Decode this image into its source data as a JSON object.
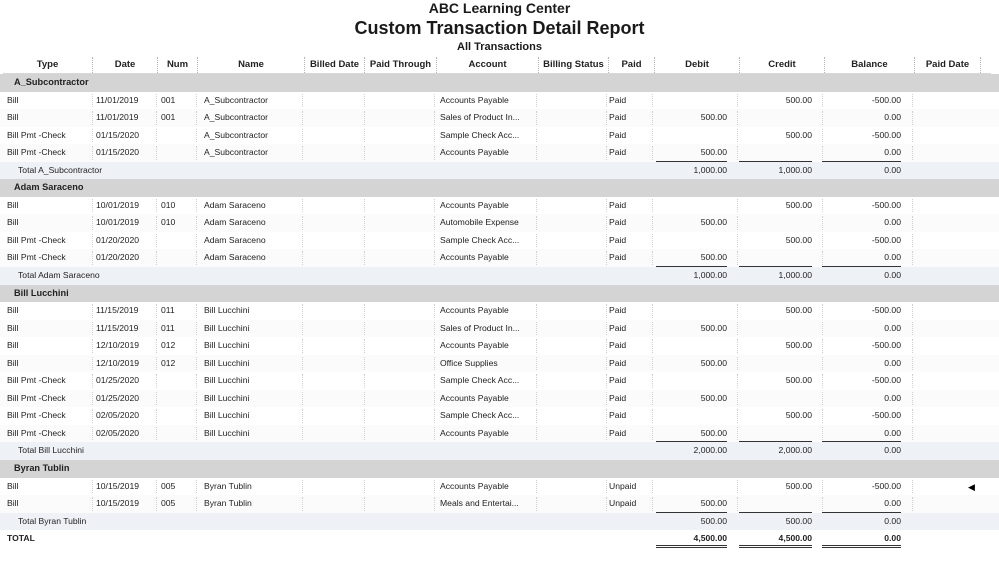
{
  "report": {
    "company": "ABC Learning Center",
    "title": "Custom Transaction Detail Report",
    "subtitle": "All Transactions"
  },
  "columns": [
    "Type",
    "Date",
    "Num",
    "Name",
    "Billed Date",
    "Paid Through",
    "Account",
    "Billing Status",
    "Paid",
    "Debit",
    "Credit",
    "Balance",
    "Paid Date"
  ],
  "groups": [
    {
      "name": "A_Subcontractor",
      "rows": [
        {
          "type": "Bill",
          "date": "11/01/2019",
          "num": "001",
          "name": "A_Subcontractor",
          "account": "Accounts Payable",
          "paid": "Paid",
          "debit": "",
          "credit": "500.00",
          "balance": "-500.00"
        },
        {
          "type": "Bill",
          "date": "11/01/2019",
          "num": "001",
          "name": "A_Subcontractor",
          "account": "Sales of Product In...",
          "paid": "Paid",
          "debit": "500.00",
          "credit": "",
          "balance": "0.00"
        },
        {
          "type": "Bill Pmt -Check",
          "date": "01/15/2020",
          "num": "",
          "name": "A_Subcontractor",
          "account": "Sample Check Acc...",
          "paid": "Paid",
          "debit": "",
          "credit": "500.00",
          "balance": "-500.00"
        },
        {
          "type": "Bill Pmt -Check",
          "date": "01/15/2020",
          "num": "",
          "name": "A_Subcontractor",
          "account": "Accounts Payable",
          "paid": "Paid",
          "debit": "500.00",
          "credit": "",
          "balance": "0.00"
        }
      ],
      "total": {
        "label": "Total A_Subcontractor",
        "debit": "1,000.00",
        "credit": "1,000.00",
        "balance": "0.00"
      }
    },
    {
      "name": "Adam Saraceno",
      "rows": [
        {
          "type": "Bill",
          "date": "10/01/2019",
          "num": "010",
          "name": "Adam Saraceno",
          "account": "Accounts Payable",
          "paid": "Paid",
          "debit": "",
          "credit": "500.00",
          "balance": "-500.00"
        },
        {
          "type": "Bill",
          "date": "10/01/2019",
          "num": "010",
          "name": "Adam Saraceno",
          "account": "Automobile Expense",
          "paid": "Paid",
          "debit": "500.00",
          "credit": "",
          "balance": "0.00"
        },
        {
          "type": "Bill Pmt -Check",
          "date": "01/20/2020",
          "num": "",
          "name": "Adam Saraceno",
          "account": "Sample Check Acc...",
          "paid": "Paid",
          "debit": "",
          "credit": "500.00",
          "balance": "-500.00"
        },
        {
          "type": "Bill Pmt -Check",
          "date": "01/20/2020",
          "num": "",
          "name": "Adam Saraceno",
          "account": "Accounts Payable",
          "paid": "Paid",
          "debit": "500.00",
          "credit": "",
          "balance": "0.00"
        }
      ],
      "total": {
        "label": "Total Adam Saraceno",
        "debit": "1,000.00",
        "credit": "1,000.00",
        "balance": "0.00"
      }
    },
    {
      "name": "Bill Lucchini",
      "rows": [
        {
          "type": "Bill",
          "date": "11/15/2019",
          "num": "011",
          "name": "Bill Lucchini",
          "account": "Accounts Payable",
          "paid": "Paid",
          "debit": "",
          "credit": "500.00",
          "balance": "-500.00"
        },
        {
          "type": "Bill",
          "date": "11/15/2019",
          "num": "011",
          "name": "Bill Lucchini",
          "account": "Sales of Product In...",
          "paid": "Paid",
          "debit": "500.00",
          "credit": "",
          "balance": "0.00"
        },
        {
          "type": "Bill",
          "date": "12/10/2019",
          "num": "012",
          "name": "Bill Lucchini",
          "account": "Accounts Payable",
          "paid": "Paid",
          "debit": "",
          "credit": "500.00",
          "balance": "-500.00"
        },
        {
          "type": "Bill",
          "date": "12/10/2019",
          "num": "012",
          "name": "Bill Lucchini",
          "account": "Office Supplies",
          "paid": "Paid",
          "debit": "500.00",
          "credit": "",
          "balance": "0.00"
        },
        {
          "type": "Bill Pmt -Check",
          "date": "01/25/2020",
          "num": "",
          "name": "Bill Lucchini",
          "account": "Sample Check Acc...",
          "paid": "Paid",
          "debit": "",
          "credit": "500.00",
          "balance": "-500.00"
        },
        {
          "type": "Bill Pmt -Check",
          "date": "01/25/2020",
          "num": "",
          "name": "Bill Lucchini",
          "account": "Accounts Payable",
          "paid": "Paid",
          "debit": "500.00",
          "credit": "",
          "balance": "0.00"
        },
        {
          "type": "Bill Pmt -Check",
          "date": "02/05/2020",
          "num": "",
          "name": "Bill Lucchini",
          "account": "Sample Check Acc...",
          "paid": "Paid",
          "debit": "",
          "credit": "500.00",
          "balance": "-500.00"
        },
        {
          "type": "Bill Pmt -Check",
          "date": "02/05/2020",
          "num": "",
          "name": "Bill Lucchini",
          "account": "Accounts Payable",
          "paid": "Paid",
          "debit": "500.00",
          "credit": "",
          "balance": "0.00"
        }
      ],
      "total": {
        "label": "Total Bill Lucchini",
        "debit": "2,000.00",
        "credit": "2,000.00",
        "balance": "0.00"
      }
    },
    {
      "name": "Byran Tublin",
      "rows": [
        {
          "type": "Bill",
          "date": "10/15/2019",
          "num": "005",
          "name": "Byran Tublin",
          "account": "Accounts Payable",
          "paid": "Unpaid",
          "debit": "",
          "credit": "500.00",
          "balance": "-500.00",
          "marker": true
        },
        {
          "type": "Bill",
          "date": "10/15/2019",
          "num": "005",
          "name": "Byran Tublin",
          "account": "Meals and Entertai...",
          "paid": "Unpaid",
          "debit": "500.00",
          "credit": "",
          "balance": "0.00"
        }
      ],
      "total": {
        "label": "Total Byran Tublin",
        "debit": "500.00",
        "credit": "500.00",
        "balance": "0.00"
      }
    }
  ],
  "grand_total": {
    "label": "TOTAL",
    "debit": "4,500.00",
    "credit": "4,500.00",
    "balance": "0.00"
  },
  "icons": {
    "row_marker": "triangle-left-icon"
  }
}
